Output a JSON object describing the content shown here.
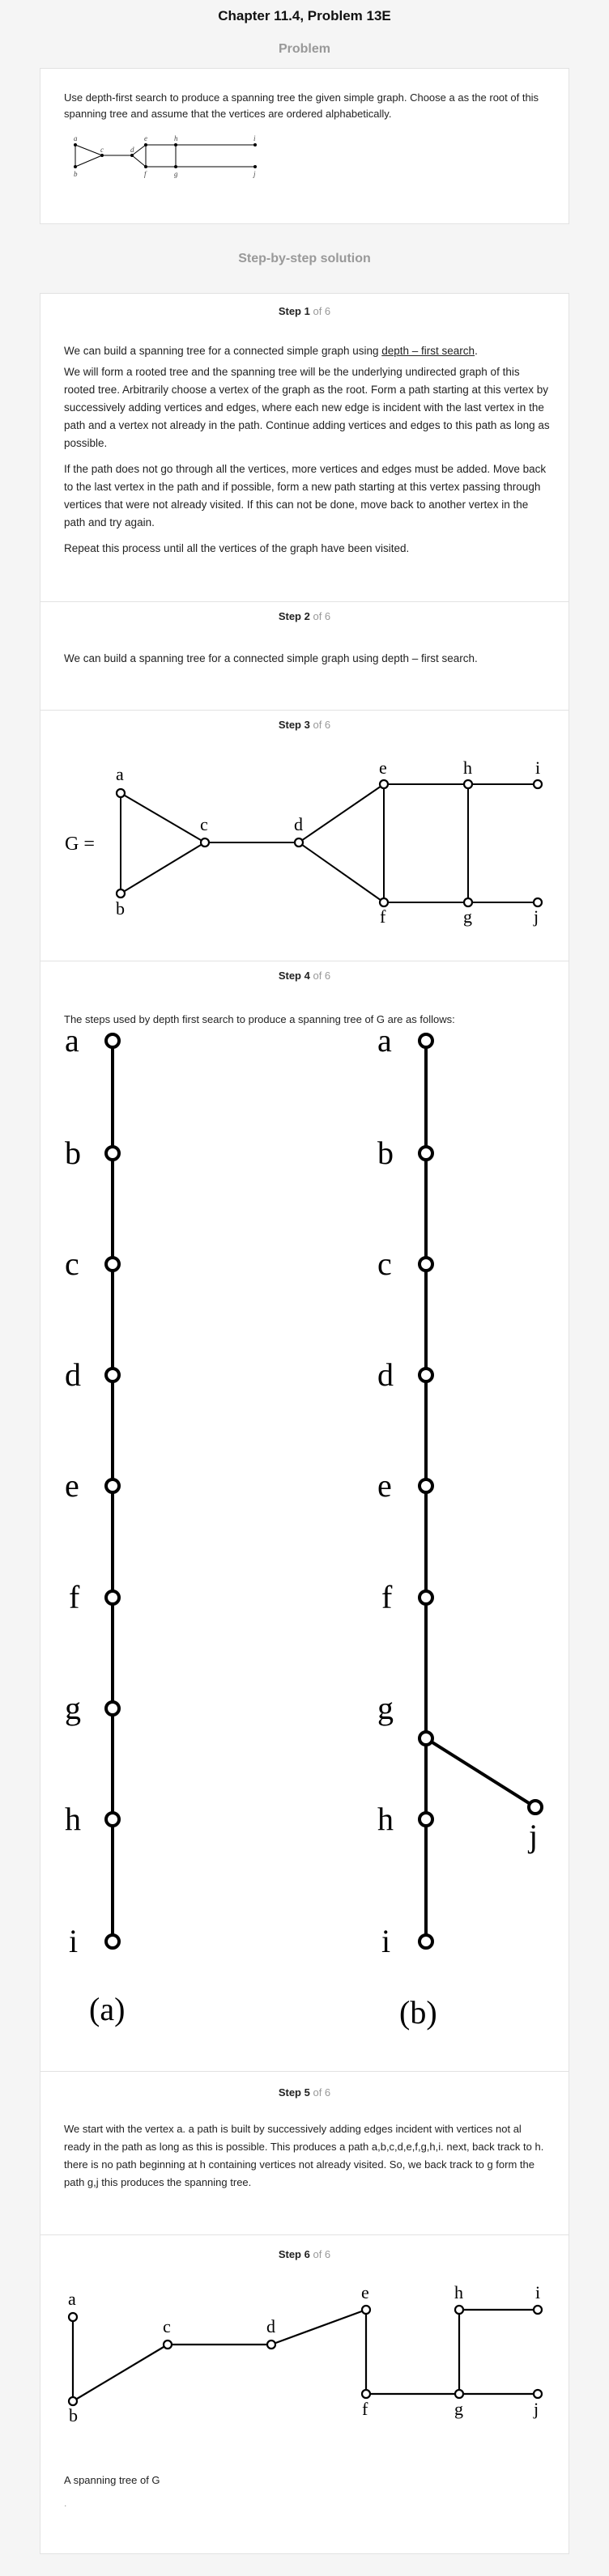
{
  "header": {
    "title": "Chapter 11.4, Problem 13E"
  },
  "problem": {
    "section_title": "Problem",
    "text": "Use depth-first search to produce a spanning tree the given simple graph. Choose a as the root of this spanning tree and assume that the vertices are ordered alphabetically.",
    "graph_labels": [
      "a",
      "b",
      "c",
      "d",
      "e",
      "f",
      "g",
      "h",
      "i",
      "j"
    ]
  },
  "solution": {
    "section_title": "Step-by-step solution",
    "of_total": "of 6",
    "steps": [
      {
        "label": "Step 1",
        "p1_pre": "We can build a spanning tree for a connected simple graph using ",
        "p1_link": "depth – first search",
        "p1_post": ".",
        "p2": "We will form a rooted tree and the spanning tree will be the underlying undirected graph of this rooted tree. Arbitrarily choose a vertex of the graph as the root. Form a path starting at this vertex by successively adding vertices and edges, where each new edge is incident with the last vertex in the path and a vertex not already in the path. Continue adding vertices and edges to this path as long as possible.",
        "p3": "If the path does not go through all the vertices, more vertices and edges must be added. Move back to the last vertex in the path and if possible, form a new path starting at this vertex passing through vertices that were not already visited. If this can not be done, move back to another vertex in the path and try again.",
        "p4": "Repeat this process until all the vertices of the graph have been visited."
      },
      {
        "label": "Step 2",
        "text": "We can build a spanning tree for a connected simple graph using depth – first search."
      },
      {
        "label": "Step 3",
        "graph_name": "G =",
        "labels": [
          "a",
          "b",
          "c",
          "d",
          "e",
          "f",
          "g",
          "h",
          "i",
          "j"
        ]
      },
      {
        "label": "Step 4",
        "text": "The steps used by depth first search to produce a spanning tree of G are as follows:",
        "left_labels": [
          "a",
          "b",
          "c",
          "d",
          "e",
          "f",
          "g",
          "h",
          "i"
        ],
        "right_labels": [
          "a",
          "b",
          "c",
          "d",
          "e",
          "f",
          "g",
          "h",
          "i",
          "j"
        ],
        "caption_a": "(a)",
        "caption_b": "(b)"
      },
      {
        "label": "Step 5",
        "text": "We start with the vertex a. a path is built by successively adding edges incident with vertices not al ready in the path as long as this is possible. This produces a path a,b,c,d,e,f,g,h,i. next, back track to h. there is no path beginning at h containing vertices not already visited. So, we back track to g form the path g,j this produces the spanning tree."
      },
      {
        "label": "Step 6",
        "labels": [
          "a",
          "b",
          "c",
          "d",
          "e",
          "f",
          "g",
          "h",
          "i",
          "j"
        ],
        "caption": "A spanning tree of G",
        "trailing": "."
      }
    ]
  }
}
